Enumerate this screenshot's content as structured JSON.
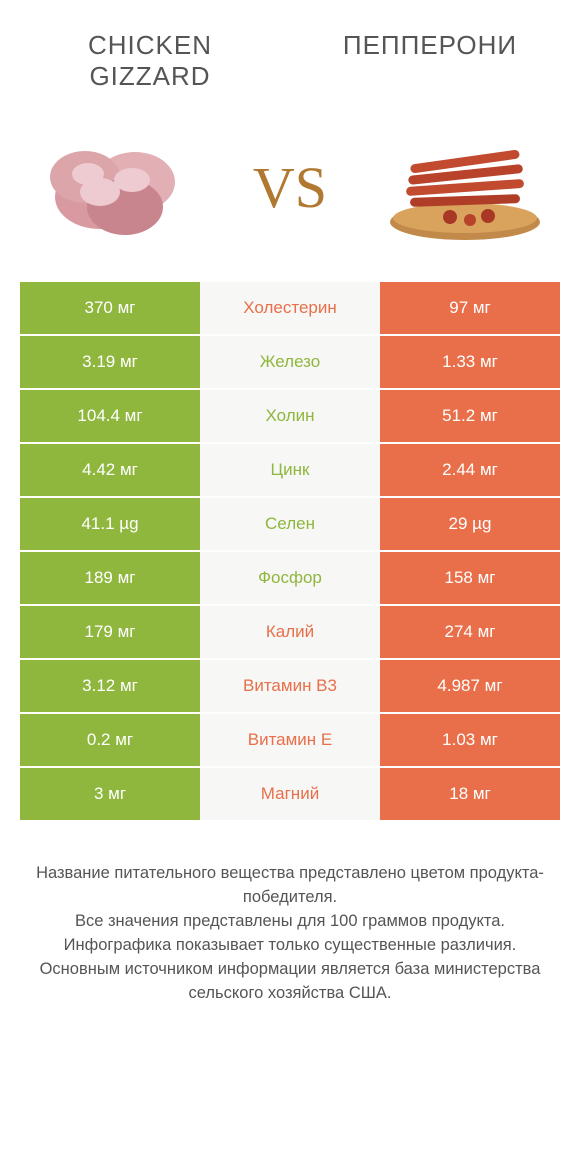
{
  "header": {
    "left_title": "CHICKEN GIZZARD",
    "right_title": "ПЕППЕРОНИ",
    "vs": "VS"
  },
  "colors": {
    "green": "#8fb73e",
    "orange": "#e86f4a",
    "mid_bg": "#f7f7f5",
    "text_gray": "#555555"
  },
  "comparison": {
    "type": "table-infographic",
    "rows": [
      {
        "left": "370 мг",
        "left_color": "#8fb73e",
        "label": "Холестерин",
        "label_color": "#e86f4a",
        "right": "97 мг",
        "right_color": "#e86f4a"
      },
      {
        "left": "3.19 мг",
        "left_color": "#8fb73e",
        "label": "Железо",
        "label_color": "#8fb73e",
        "right": "1.33 мг",
        "right_color": "#e86f4a"
      },
      {
        "left": "104.4 мг",
        "left_color": "#8fb73e",
        "label": "Холин",
        "label_color": "#8fb73e",
        "right": "51.2 мг",
        "right_color": "#e86f4a"
      },
      {
        "left": "4.42 мг",
        "left_color": "#8fb73e",
        "label": "Цинк",
        "label_color": "#8fb73e",
        "right": "2.44 мг",
        "right_color": "#e86f4a"
      },
      {
        "left": "41.1 µg",
        "left_color": "#8fb73e",
        "label": "Селен",
        "label_color": "#8fb73e",
        "right": "29 µg",
        "right_color": "#e86f4a"
      },
      {
        "left": "189 мг",
        "left_color": "#8fb73e",
        "label": "Фосфор",
        "label_color": "#8fb73e",
        "right": "158 мг",
        "right_color": "#e86f4a"
      },
      {
        "left": "179 мг",
        "left_color": "#8fb73e",
        "label": "Калий",
        "label_color": "#e86f4a",
        "right": "274 мг",
        "right_color": "#e86f4a"
      },
      {
        "left": "3.12 мг",
        "left_color": "#8fb73e",
        "label": "Витамин B3",
        "label_color": "#e86f4a",
        "right": "4.987 мг",
        "right_color": "#e86f4a"
      },
      {
        "left": "0.2 мг",
        "left_color": "#8fb73e",
        "label": "Витамин E",
        "label_color": "#e86f4a",
        "right": "1.03 мг",
        "right_color": "#e86f4a"
      },
      {
        "left": "3 мг",
        "left_color": "#8fb73e",
        "label": "Магний",
        "label_color": "#e86f4a",
        "right": "18 мг",
        "right_color": "#e86f4a"
      }
    ]
  },
  "footer": {
    "line1": "Название питательного вещества представлено цветом продукта-победителя.",
    "line2": "Все значения представлены для 100 граммов продукта.",
    "line3": "Инфографика показывает только существенные различия.",
    "line4": "Основным источником информации является база министерства сельского хозяйства США."
  }
}
